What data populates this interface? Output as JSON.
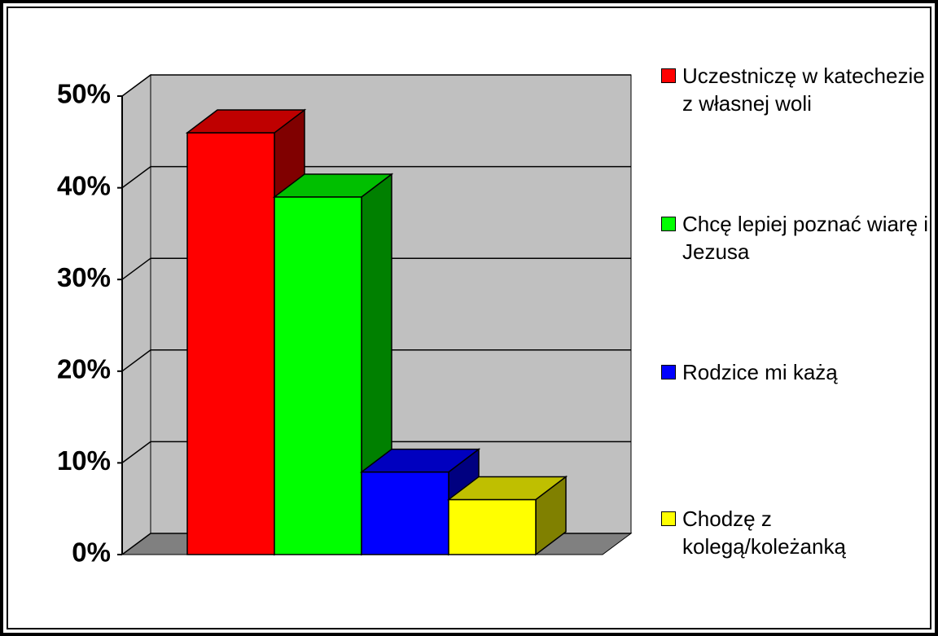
{
  "chart_data": {
    "type": "bar3d",
    "series": [
      {
        "name": "Uczestniczę w katechezie z własnej woli",
        "color": "#ff0000",
        "values": [
          46
        ]
      },
      {
        "name": "Chcę lepiej poznać wiarę i Jezusa",
        "color": "#00ff00",
        "values": [
          39
        ]
      },
      {
        "name": "Rodzice mi każą",
        "color": "#0000ff",
        "values": [
          9
        ]
      },
      {
        "name": "Chodzę z kolegą/koleżanką",
        "color": "#ffff00",
        "values": [
          6
        ]
      }
    ],
    "ylim": [
      0,
      50
    ],
    "yticks": [
      {
        "value": 0,
        "label": "0%"
      },
      {
        "value": 10,
        "label": "10%"
      },
      {
        "value": 20,
        "label": "20%"
      },
      {
        "value": 30,
        "label": "30%"
      },
      {
        "value": 40,
        "label": "40%"
      },
      {
        "value": 50,
        "label": "50%"
      }
    ],
    "grid": true,
    "legend": "right"
  }
}
